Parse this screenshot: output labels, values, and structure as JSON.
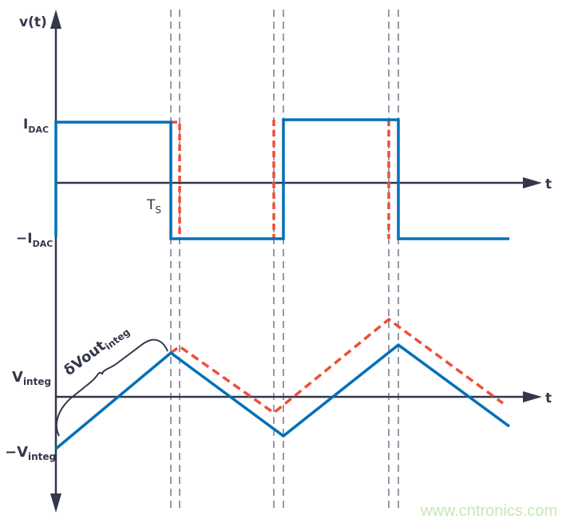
{
  "colors": {
    "axis": "#33374a",
    "ideal": "#0070b8",
    "delayed": "#f04e37",
    "guide": "#7d8290"
  },
  "labels": {
    "y_axis": "v(t)",
    "t_upper": "t",
    "t_lower": "t",
    "idac_main": "I",
    "idac_sub": "DAC",
    "neg_idac_main": "−I",
    "neg_idac_sub": "DAC",
    "ts_main": "T",
    "ts_sub": "S",
    "vinteg_main": "V",
    "vinteg_sub": "integ",
    "neg_vinteg_main": "−V",
    "neg_vinteg_sub": "integ",
    "dvout_main": "δVout",
    "dvout_sub": "integ"
  },
  "watermark": "www.cntronics.com"
}
